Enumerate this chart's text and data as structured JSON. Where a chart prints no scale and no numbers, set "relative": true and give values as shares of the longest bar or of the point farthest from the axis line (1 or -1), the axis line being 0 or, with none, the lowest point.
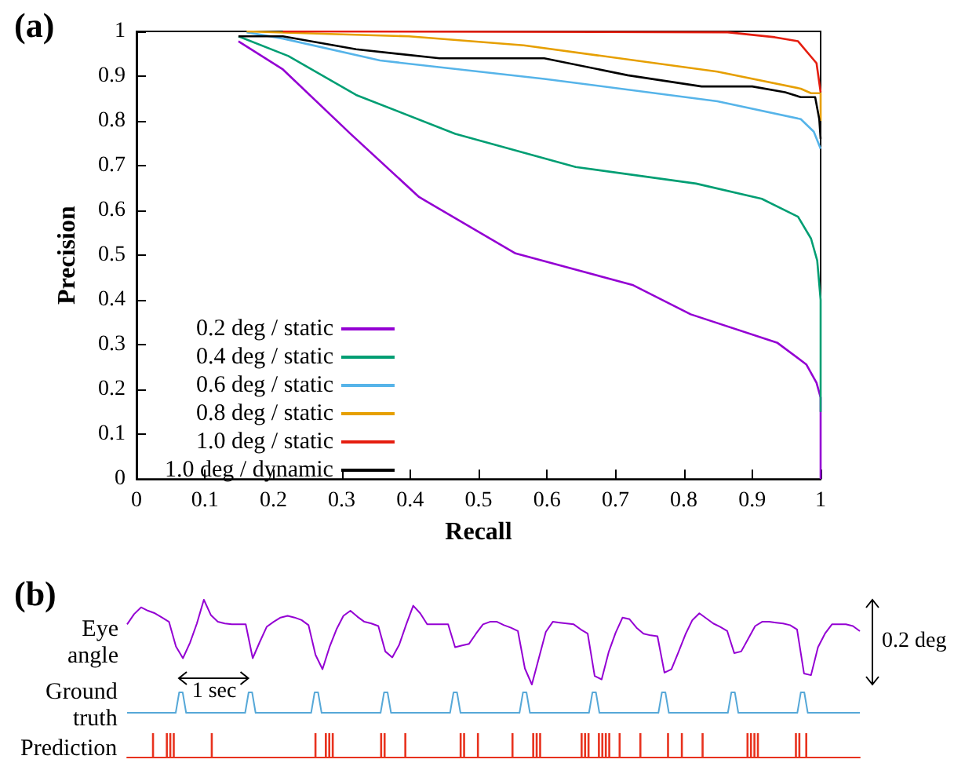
{
  "chart_data": [
    {
      "type": "line",
      "title": "(a)",
      "xlabel": "Recall",
      "ylabel": "Precision",
      "xlim": [
        0,
        1
      ],
      "ylim": [
        0,
        1
      ],
      "xticks": [
        0,
        0.1,
        0.2,
        0.3,
        0.4,
        0.5,
        0.6,
        0.7,
        0.8,
        0.9,
        1
      ],
      "yticks": [
        0,
        0.1,
        0.2,
        0.3,
        0.4,
        0.5,
        0.6,
        0.7,
        0.8,
        0.9,
        1
      ],
      "legend": "bottom left",
      "series": [
        {
          "name": "0.2 deg / static",
          "color": "#9400d3",
          "x": [
            0.149,
            0.214,
            0.313,
            0.413,
            0.554,
            0.726,
            0.81,
            0.937,
            0.979,
            0.994,
            1,
            1
          ],
          "values": [
            0.978,
            0.915,
            0.771,
            0.63,
            0.504,
            0.433,
            0.368,
            0.304,
            0.256,
            0.215,
            0.182,
            0
          ]
        },
        {
          "name": "0.4 deg / static",
          "color": "#009e73",
          "x": [
            0.149,
            0.222,
            0.321,
            0.466,
            0.642,
            0.818,
            0.914,
            0.967,
            0.986,
            0.995,
            1,
            1
          ],
          "values": [
            0.989,
            0.945,
            0.858,
            0.771,
            0.697,
            0.66,
            0.626,
            0.586,
            0.537,
            0.488,
            0.4,
            0.15
          ]
        },
        {
          "name": "0.6 deg / static",
          "color": "#56b4e9",
          "x": [
            0.161,
            0.214,
            0.356,
            0.596,
            0.849,
            0.971,
            0.99,
            1
          ],
          "values": [
            0.998,
            0.984,
            0.935,
            0.894,
            0.844,
            0.804,
            0.776,
            0.738
          ]
        },
        {
          "name": "0.8 deg / static",
          "color": "#e69f00",
          "x": [
            0.161,
            0.398,
            0.566,
            0.849,
            0.971,
            0.986,
            1,
            1
          ],
          "values": [
            1,
            0.989,
            0.969,
            0.91,
            0.872,
            0.862,
            0.862,
            0.8
          ]
        },
        {
          "name": "1.0 deg / static",
          "color": "#e51e10",
          "x": [
            0.214,
            0.864,
            0.933,
            0.967,
            0.994,
            1
          ],
          "values": [
            1,
            0.998,
            0.987,
            0.978,
            0.929,
            0.864
          ]
        },
        {
          "name": "1.0 deg / dynamic",
          "color": "#000000",
          "x": [
            0.149,
            0.214,
            0.321,
            0.443,
            0.596,
            0.718,
            0.826,
            0.9,
            0.948,
            0.971,
            0.992,
            0.998,
            1
          ],
          "values": [
            0.989,
            0.989,
            0.96,
            0.94,
            0.94,
            0.902,
            0.877,
            0.877,
            0.864,
            0.853,
            0.853,
            0.804,
            0.76
          ]
        }
      ]
    },
    {
      "type": "line",
      "title": "(b)",
      "ylabel": "Eye angle",
      "relative": true,
      "annotations": [
        "0.2 deg",
        "1 sec"
      ],
      "categories": [
        null,
        null,
        null,
        null,
        null,
        null,
        null,
        null,
        null,
        null,
        null,
        null,
        null,
        null,
        null,
        null,
        null,
        null,
        null,
        null,
        null,
        null,
        null,
        null,
        null,
        null,
        null,
        null,
        null,
        null,
        null,
        null,
        null,
        null,
        null,
        null,
        null,
        null,
        null,
        null,
        null,
        null,
        null,
        null,
        null,
        null,
        null,
        null,
        null,
        null,
        null,
        null,
        null,
        null,
        null,
        null,
        null,
        null,
        null,
        null,
        null,
        null,
        null,
        null,
        null,
        null,
        null,
        null,
        null,
        null,
        null,
        null,
        null,
        null,
        null,
        null,
        null,
        null,
        null,
        null,
        null,
        null,
        null,
        null,
        null,
        null,
        null,
        null,
        null,
        null,
        null,
        null,
        null,
        null,
        null,
        null,
        null,
        null,
        null,
        null,
        null,
        null,
        null,
        null,
        null,
        null
      ],
      "series": [
        {
          "color": "#9400d3",
          "values": [
            0.71,
            0.83,
            0.91,
            0.87,
            0.84,
            0.79,
            0.74,
            0.45,
            0.31,
            0.49,
            0.72,
            1,
            0.82,
            0.74,
            0.72,
            0.71,
            0.71,
            0.71,
            0.31,
            0.5,
            0.68,
            0.74,
            0.79,
            0.81,
            0.79,
            0.76,
            0.7,
            0.35,
            0.18,
            0.44,
            0.65,
            0.81,
            0.87,
            0.8,
            0.74,
            0.72,
            0.69,
            0.39,
            0.32,
            0.47,
            0.71,
            0.93,
            0.84,
            0.71,
            0.71,
            0.71,
            0.71,
            0.44,
            0.46,
            0.48,
            0.6,
            0.71,
            0.74,
            0.74,
            0.7,
            0.67,
            0.63,
            0.19,
            0,
            0.31,
            0.62,
            0.74,
            0.73,
            0.72,
            0.71,
            0.65,
            0.6,
            0.1,
            0.06,
            0.38,
            0.61,
            0.79,
            0.77,
            0.67,
            0.6,
            0.58,
            0.57,
            0.14,
            0.18,
            0.38,
            0.59,
            0.76,
            0.84,
            0.78,
            0.72,
            0.68,
            0.63,
            0.37,
            0.39,
            0.54,
            0.69,
            0.74,
            0.74,
            0.73,
            0.72,
            0.7,
            0.65,
            0.13,
            0.11,
            0.44,
            0.6,
            0.71,
            0.71,
            0.71,
            0.69,
            0.63
          ]
        }
      ]
    },
    {
      "type": "line",
      "ylabel": "Ground truth",
      "relative": true,
      "categories": [
        null,
        null,
        null,
        null,
        null,
        null,
        null,
        null,
        null,
        null,
        null,
        null,
        null,
        null,
        null,
        null,
        null,
        null,
        null,
        null,
        null,
        null,
        null,
        null,
        null,
        null,
        null,
        null,
        null,
        null,
        null,
        null,
        null,
        null,
        null,
        null,
        null,
        null,
        null,
        null,
        null,
        null,
        null,
        null,
        null,
        null,
        null,
        null,
        null,
        null,
        null,
        null,
        null,
        null,
        null,
        null,
        null,
        null,
        null,
        null,
        null,
        null,
        null,
        null,
        null,
        null,
        null,
        null,
        null,
        null,
        null,
        null,
        null,
        null,
        null,
        null,
        null,
        null,
        null,
        null,
        null,
        null,
        null,
        null,
        null,
        null,
        null,
        null,
        null,
        null,
        null,
        null,
        null,
        null,
        null,
        null,
        null,
        null,
        null,
        null,
        null,
        null,
        null,
        null,
        null,
        null,
        null,
        null,
        null,
        null,
        null,
        null,
        null,
        null,
        null,
        null,
        null,
        null,
        null,
        null,
        null,
        null,
        null,
        null,
        null,
        null,
        null,
        null,
        null,
        null,
        null,
        null,
        null,
        null,
        null,
        null,
        null,
        null,
        null,
        null,
        null,
        null,
        null,
        null,
        null,
        null,
        null,
        null,
        null,
        null,
        null,
        null,
        null,
        null,
        null,
        null,
        null,
        null,
        null,
        null,
        null,
        null,
        null,
        null,
        null,
        null,
        null,
        null,
        null,
        null,
        null,
        null,
        null,
        null,
        null,
        null,
        null,
        null,
        null,
        null,
        null,
        null,
        null,
        null,
        null,
        null,
        null,
        null,
        null,
        null,
        null,
        null,
        null,
        null,
        null,
        null,
        null,
        null,
        null,
        null,
        null,
        null,
        null,
        null,
        null,
        null,
        null,
        null,
        null,
        null,
        null,
        null
      ],
      "series": [
        {
          "color": "#56a8d8",
          "values": [
            0,
            0,
            0,
            0,
            0,
            0,
            0,
            0,
            0,
            0,
            0,
            0,
            0,
            0,
            0,
            1,
            1,
            0,
            0,
            0,
            0,
            0,
            0,
            0,
            0,
            0,
            0,
            0,
            0,
            0,
            0,
            0,
            0,
            0,
            0,
            1,
            1,
            0,
            0,
            0,
            0,
            0,
            0,
            0,
            0,
            0,
            0,
            0,
            0,
            0,
            0,
            0,
            0,
            0,
            1,
            1,
            0,
            0,
            0,
            0,
            0,
            0,
            0,
            0,
            0,
            0,
            0,
            0,
            0,
            0,
            0,
            0,
            0,
            0,
            1,
            1,
            0,
            0,
            0,
            0,
            0,
            0,
            0,
            0,
            0,
            0,
            0,
            0,
            0,
            0,
            0,
            0,
            0,
            0,
            1,
            1,
            0,
            0,
            0,
            0,
            0,
            0,
            0,
            0,
            0,
            0,
            0,
            0,
            0,
            0,
            0,
            0,
            0,
            0,
            1,
            1,
            0,
            0,
            0,
            0,
            0,
            0,
            0,
            0,
            0,
            0,
            0,
            0,
            0,
            0,
            0,
            0,
            0,
            0,
            1,
            1,
            0,
            0,
            0,
            0,
            0,
            0,
            0,
            0,
            0,
            0,
            0,
            0,
            0,
            0,
            0,
            0,
            0,
            0,
            1,
            1,
            0,
            0,
            0,
            0,
            0,
            0,
            0,
            0,
            0,
            0,
            0,
            0,
            0,
            0,
            0,
            0,
            0,
            0,
            1,
            1,
            0,
            0,
            0,
            0,
            0,
            0,
            0,
            0,
            0,
            0,
            0,
            0,
            0,
            0,
            0,
            0,
            0,
            0,
            1,
            1,
            0,
            0,
            0,
            0,
            0,
            0,
            0,
            0,
            0,
            0,
            0,
            0,
            0,
            0,
            0,
            0
          ]
        }
      ]
    },
    {
      "type": "bar",
      "ylabel": "Prediction",
      "relative": true,
      "categories": [
        null,
        null,
        null,
        null,
        null,
        null,
        null,
        null,
        null,
        null,
        null,
        null,
        null,
        null,
        null,
        null,
        null,
        null,
        null,
        null,
        null,
        null,
        null,
        null,
        null,
        null,
        null,
        null,
        null,
        null,
        null,
        null,
        null,
        null,
        null,
        null,
        null,
        null,
        null,
        null,
        null,
        null,
        null,
        null,
        null,
        null,
        null,
        null,
        null,
        null,
        null,
        null,
        null,
        null,
        null,
        null,
        null,
        null,
        null,
        null,
        null,
        null,
        null,
        null,
        null,
        null,
        null,
        null,
        null,
        null,
        null,
        null,
        null,
        null,
        null,
        null,
        null,
        null,
        null,
        null,
        null,
        null,
        null,
        null,
        null,
        null,
        null,
        null,
        null,
        null,
        null,
        null,
        null,
        null,
        null,
        null,
        null,
        null,
        null,
        null,
        null,
        null,
        null,
        null,
        null,
        null,
        null,
        null,
        null,
        null,
        null,
        null,
        null,
        null,
        null,
        null,
        null,
        null,
        null,
        null,
        null,
        null,
        null,
        null,
        null,
        null,
        null,
        null,
        null,
        null,
        null,
        null,
        null,
        null,
        null,
        null,
        null,
        null,
        null,
        null,
        null,
        null,
        null,
        null,
        null,
        null,
        null,
        null,
        null,
        null,
        null,
        null,
        null,
        null,
        null,
        null,
        null,
        null,
        null,
        null,
        null,
        null,
        null,
        null,
        null,
        null,
        null,
        null,
        null,
        null,
        null,
        null,
        null,
        null,
        null,
        null,
        null,
        null,
        null,
        null,
        null,
        null,
        null,
        null,
        null,
        null,
        null,
        null,
        null,
        null,
        null,
        null,
        null,
        null,
        null,
        null,
        null,
        null,
        null,
        null,
        null,
        null,
        null,
        null,
        null,
        null,
        null,
        null,
        null,
        null,
        null,
        null
      ],
      "series": [
        {
          "color": "#e8321e",
          "values": [
            0,
            0,
            0,
            0,
            0,
            0,
            0,
            1,
            0,
            0,
            0,
            1,
            1,
            1,
            0,
            0,
            0,
            0,
            0,
            0,
            0,
            0,
            0,
            0,
            1,
            0,
            0,
            0,
            0,
            0,
            0,
            0,
            0,
            0,
            0,
            0,
            0,
            0,
            0,
            0,
            0,
            0,
            0,
            0,
            0,
            0,
            0,
            0,
            0,
            0,
            0,
            0,
            0,
            0,
            1,
            0,
            0,
            1,
            1,
            1,
            0,
            0,
            0,
            0,
            0,
            0,
            0,
            0,
            0,
            0,
            0,
            0,
            0,
            1,
            1,
            0,
            0,
            0,
            0,
            0,
            1,
            0,
            0,
            0,
            0,
            0,
            0,
            0,
            0,
            0,
            0,
            0,
            0,
            0,
            0,
            0,
            1,
            1,
            0,
            0,
            0,
            1,
            0,
            0,
            0,
            0,
            0,
            0,
            0,
            0,
            0,
            1,
            0,
            0,
            0,
            0,
            0,
            1,
            1,
            1,
            0,
            0,
            0,
            0,
            0,
            0,
            0,
            0,
            0,
            0,
            0,
            1,
            1,
            1,
            0,
            0,
            1,
            1,
            1,
            1,
            0,
            0,
            1,
            0,
            0,
            0,
            0,
            0,
            1,
            0,
            0,
            0,
            0,
            0,
            0,
            0,
            1,
            0,
            0,
            0,
            1,
            0,
            0,
            0,
            0,
            0,
            1,
            0,
            0,
            0,
            0,
            0,
            0,
            0,
            0,
            0,
            0,
            0,
            0,
            1,
            1,
            1,
            1,
            0,
            0,
            0,
            0,
            0,
            0,
            0,
            0,
            0,
            0,
            1,
            1,
            0,
            1,
            0,
            0,
            0,
            0,
            0,
            0,
            0,
            0,
            0,
            0,
            0,
            0,
            0,
            0,
            0
          ]
        }
      ]
    }
  ]
}
